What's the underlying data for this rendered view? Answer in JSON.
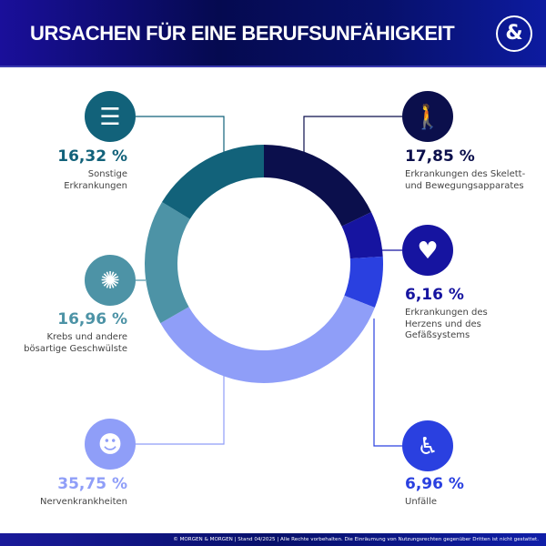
{
  "header": {
    "title": "URSACHEN FÜR EINE BERUFSUNFÄHIGKEIT",
    "logo": "&"
  },
  "footer": {
    "text": "© MORGEN & MORGEN | Stand 04/2025 | Alle Rechte vorbehalten. Die Einräumung von Nutzungsrechten gegenüber Dritten ist nicht gestattet."
  },
  "chart_data": {
    "type": "pie",
    "variant": "donut",
    "categories": [
      "Erkrankungen des Skelett- und Bewegungsapparates",
      "Erkrankungen des Herzens und des Gefäßsystems",
      "Unfälle",
      "Nervenkrankheiten",
      "Krebs und andere bösartige Geschwülste",
      "Sonstige Erkrankungen"
    ],
    "values": [
      17.85,
      6.16,
      6.96,
      35.75,
      16.96,
      16.32
    ],
    "value_labels": [
      "17,85 %",
      "6,16 %",
      "6,96 %",
      "35,75 %",
      "16,96 %",
      "16,32 %"
    ],
    "label_lines": [
      [
        "Erkrankungen des Skelett-",
        "und Bewegungsapparates"
      ],
      [
        "Erkrankungen des",
        "Herzens und des",
        "Gefäßsystems"
      ],
      [
        "Unfälle"
      ],
      [
        "Nervenkrankheiten"
      ],
      [
        "Krebs und andere",
        "bösartige Geschwülste"
      ],
      [
        "Sonstige",
        "Erkrankungen"
      ]
    ],
    "colors": [
      "#0b0f4c",
      "#1614a0",
      "#2a40e0",
      "#8f9ef8",
      "#4d93a6",
      "#12627a"
    ],
    "icons": [
      "walking-person-icon",
      "heart-pulse-icon",
      "wheelchair-icon",
      "head-icon",
      "brain-icon",
      "list-icon"
    ],
    "start": "top",
    "direction": "clockwise"
  }
}
